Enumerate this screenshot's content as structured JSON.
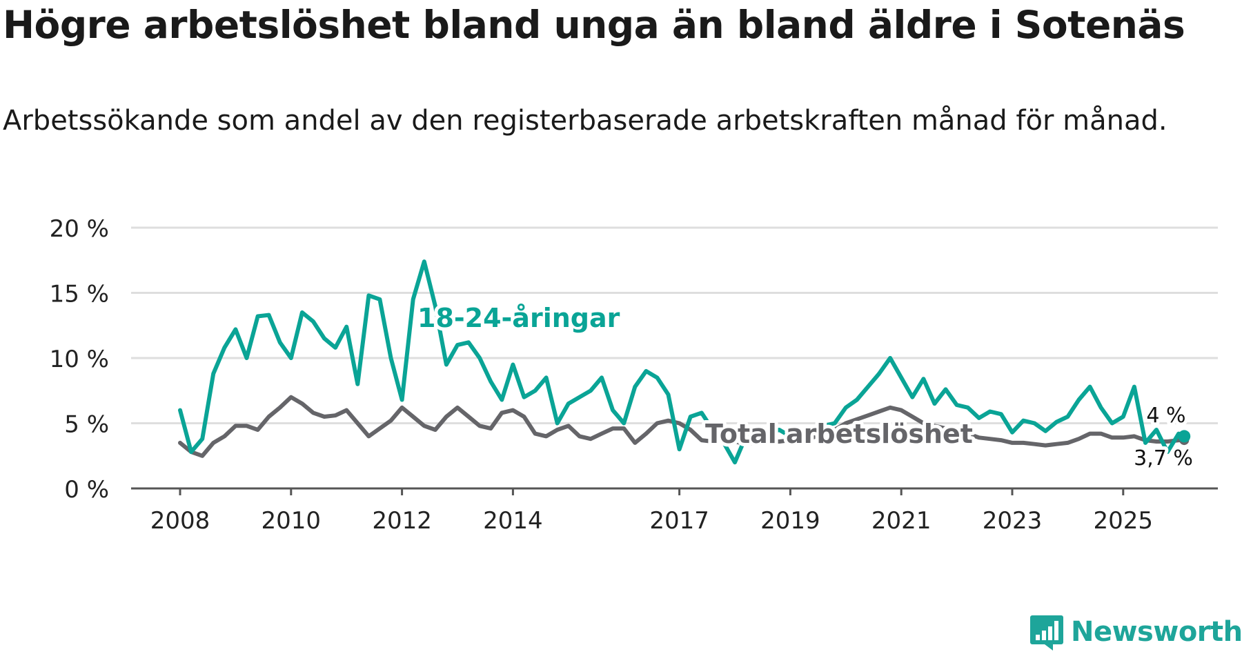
{
  "title": "Högre arbetslöshet bland unga än bland äldre i Sotenäs",
  "subtitle": "Arbetssökande som andel av den registerbaserade arbetskraften månad för månad.",
  "brand": {
    "name": "Newsworthy",
    "icon": "bar-chart-logo-icon",
    "color": "#1ea59a"
  },
  "colors": {
    "youth": "#0aa496",
    "total": "#656569",
    "grid": "#dedede",
    "axis": "#555555"
  },
  "chart_data": {
    "type": "line",
    "title": "Högre arbetslöshet bland unga än bland äldre i Sotenäs",
    "subtitle": "Arbetssökande som andel av den registerbaserade arbetskraften månad för månad.",
    "xlabel": "",
    "ylabel": "",
    "ylim": [
      0,
      20
    ],
    "xlim": [
      2008,
      2026.8
    ],
    "yticks": [
      0,
      5,
      10,
      15,
      20
    ],
    "ytick_labels": [
      "0 %",
      "5 %",
      "10 %",
      "15 %",
      "20 %"
    ],
    "xticks": [
      2008,
      2010,
      2012,
      2014,
      2017,
      2019,
      2021,
      2023,
      2025
    ],
    "xtick_labels": [
      "2008",
      "2010",
      "2012",
      "2014",
      "2017",
      "2019",
      "2021",
      "2023",
      "2025"
    ],
    "grid": true,
    "series": [
      {
        "name": "18-24-åringar",
        "label": "18-24-åringar",
        "end_label": "4 %",
        "x": [
          2008.0,
          2008.2,
          2008.4,
          2008.6,
          2008.8,
          2009.0,
          2009.2,
          2009.4,
          2009.6,
          2009.8,
          2010.0,
          2010.2,
          2010.4,
          2010.6,
          2010.8,
          2011.0,
          2011.2,
          2011.4,
          2011.6,
          2011.8,
          2012.0,
          2012.2,
          2012.4,
          2012.6,
          2012.8,
          2013.0,
          2013.2,
          2013.4,
          2013.6,
          2013.8,
          2014.0,
          2014.2,
          2014.4,
          2014.6,
          2014.8,
          2015.0,
          2015.2,
          2015.4,
          2015.6,
          2015.8,
          2016.0,
          2016.2,
          2016.4,
          2016.6,
          2016.8,
          2017.0,
          2017.2,
          2017.4,
          2017.6,
          2017.8,
          2018.0,
          2018.2,
          2018.4,
          2018.6,
          2018.8,
          2019.0,
          2019.2,
          2019.4,
          2019.6,
          2019.8,
          2020.0,
          2020.2,
          2020.4,
          2020.6,
          2020.8,
          2021.0,
          2021.2,
          2021.4,
          2021.6,
          2021.8,
          2022.0,
          2022.2,
          2022.4,
          2022.6,
          2022.8,
          2023.0,
          2023.2,
          2023.4,
          2023.6,
          2023.8,
          2024.0,
          2024.2,
          2024.4,
          2024.6,
          2024.8,
          2025.0,
          2025.2,
          2025.4,
          2025.6,
          2025.8,
          2026.0,
          2026.1
        ],
        "values": [
          6.0,
          2.8,
          3.8,
          8.8,
          10.8,
          12.2,
          10.0,
          13.2,
          13.3,
          11.2,
          10.0,
          13.5,
          12.8,
          11.5,
          10.8,
          12.4,
          8.0,
          14.8,
          14.5,
          10.0,
          6.8,
          14.5,
          17.4,
          14.0,
          9.5,
          11.0,
          11.2,
          10.0,
          8.2,
          6.8,
          9.5,
          7.0,
          7.5,
          8.5,
          5.0,
          6.5,
          7.0,
          7.5,
          8.5,
          6.0,
          5.0,
          7.8,
          9.0,
          8.5,
          7.2,
          3.0,
          5.5,
          5.8,
          4.5,
          3.5,
          2.0,
          4.0,
          4.5,
          4.2,
          4.5,
          4.0,
          4.2,
          4.5,
          4.8,
          5.0,
          6.2,
          6.8,
          7.8,
          8.8,
          10.0,
          8.5,
          7.0,
          8.4,
          6.5,
          7.6,
          6.4,
          6.2,
          5.4,
          5.9,
          5.7,
          4.3,
          5.2,
          5.0,
          4.4,
          5.1,
          5.5,
          6.8,
          7.8,
          6.2,
          5.0,
          5.5,
          7.8,
          3.5,
          4.5,
          2.8,
          4.2,
          4.0
        ]
      },
      {
        "name": "Total arbetslöshet",
        "label": "Total arbetslöshet",
        "end_label": "3,7 %",
        "x": [
          2008.0,
          2008.2,
          2008.4,
          2008.6,
          2008.8,
          2009.0,
          2009.2,
          2009.4,
          2009.6,
          2009.8,
          2010.0,
          2010.2,
          2010.4,
          2010.6,
          2010.8,
          2011.0,
          2011.2,
          2011.4,
          2011.6,
          2011.8,
          2012.0,
          2012.2,
          2012.4,
          2012.6,
          2012.8,
          2013.0,
          2013.2,
          2013.4,
          2013.6,
          2013.8,
          2014.0,
          2014.2,
          2014.4,
          2014.6,
          2014.8,
          2015.0,
          2015.2,
          2015.4,
          2015.6,
          2015.8,
          2016.0,
          2016.2,
          2016.4,
          2016.6,
          2016.8,
          2017.0,
          2017.2,
          2017.4,
          2017.6,
          2017.8,
          2018.0,
          2018.2,
          2018.4,
          2018.6,
          2018.8,
          2019.0,
          2019.2,
          2019.4,
          2019.6,
          2019.8,
          2020.0,
          2020.2,
          2020.4,
          2020.6,
          2020.8,
          2021.0,
          2021.2,
          2021.4,
          2021.6,
          2021.8,
          2022.0,
          2022.2,
          2022.4,
          2022.6,
          2022.8,
          2023.0,
          2023.2,
          2023.4,
          2023.6,
          2023.8,
          2024.0,
          2024.2,
          2024.4,
          2024.6,
          2024.8,
          2025.0,
          2025.2,
          2025.4,
          2025.6,
          2025.8,
          2026.0,
          2026.1
        ],
        "values": [
          3.5,
          2.8,
          2.5,
          3.5,
          4.0,
          4.8,
          4.8,
          4.5,
          5.5,
          6.2,
          7.0,
          6.5,
          5.8,
          5.5,
          5.6,
          6.0,
          5.0,
          4.0,
          4.6,
          5.2,
          6.2,
          5.5,
          4.8,
          4.5,
          5.5,
          6.2,
          5.5,
          4.8,
          4.6,
          5.8,
          6.0,
          5.5,
          4.2,
          4.0,
          4.5,
          4.8,
          4.0,
          3.8,
          4.2,
          4.6,
          4.6,
          3.5,
          4.2,
          5.0,
          5.2,
          5.0,
          4.5,
          3.7,
          3.6,
          3.8,
          3.6,
          3.4,
          3.5,
          3.6,
          3.6,
          3.7,
          3.8,
          3.9,
          4.2,
          4.5,
          5.0,
          5.3,
          5.6,
          5.9,
          6.2,
          6.0,
          5.5,
          5.0,
          4.8,
          4.6,
          4.4,
          4.2,
          3.9,
          3.8,
          3.7,
          3.5,
          3.5,
          3.4,
          3.3,
          3.4,
          3.5,
          3.8,
          4.2,
          4.2,
          3.9,
          3.9,
          4.0,
          3.7,
          3.6,
          3.6,
          3.7,
          3.7
        ]
      }
    ]
  }
}
